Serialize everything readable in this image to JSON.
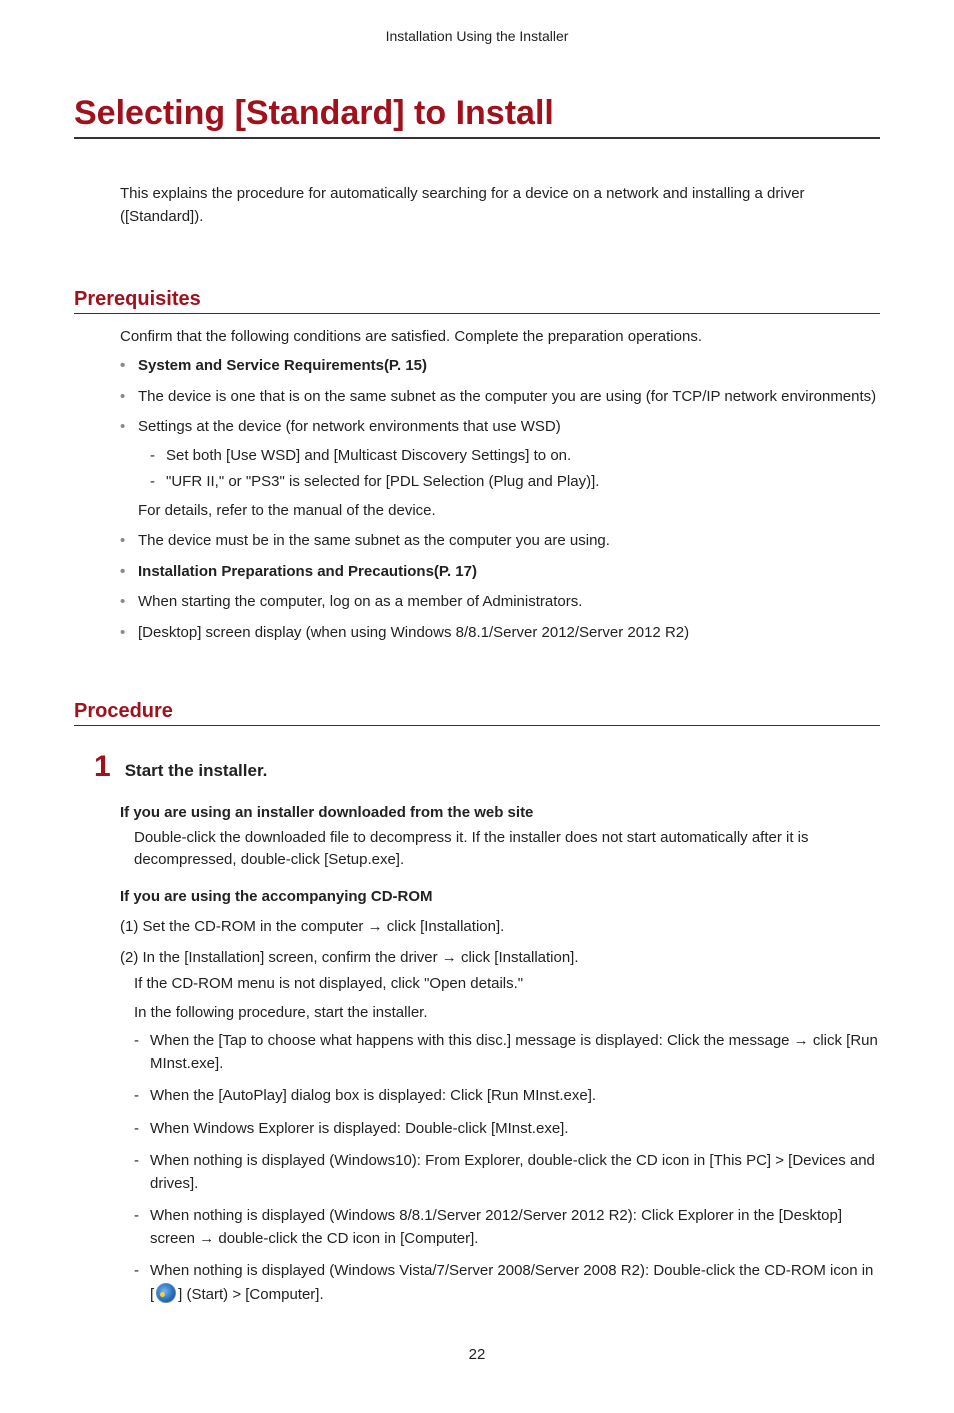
{
  "header": "Installation Using the Installer",
  "title": "Selecting [Standard] to Install",
  "intro": "This explains the procedure for automatically searching for a device on a network and installing a driver ([Standard]).",
  "prerequisites": {
    "heading": "Prerequisites",
    "intro": "Confirm that the following conditions are satisfied. Complete the preparation operations.",
    "items": {
      "i1": "System and Service Requirements(P. 15)",
      "i2": "The device is one that is on the same subnet as the computer you are using (for TCP/IP network environments)",
      "i3": {
        "text": "Settings at the device (for network environments that use WSD)",
        "sub1": "Set both [Use WSD] and [Multicast Discovery Settings] to on.",
        "sub2": "\"UFR II,\" or \"PS3\" is selected for [PDL Selection (Plug and Play)].",
        "after": "For details, refer to the manual of the device."
      },
      "i4": "The device must be in the same subnet as the computer you are using.",
      "i5": "Installation Preparations and Precautions(P. 17)",
      "i6": "When starting the computer, log on as a member of Administrators.",
      "i7": "[Desktop] screen display (when using Windows 8/8.1/Server 2012/Server 2012 R2)"
    }
  },
  "procedure": {
    "heading": "Procedure",
    "step1": {
      "num": "1",
      "title": "Start the installer.",
      "web_head": "If you are using an installer downloaded from the web site",
      "web_text": "Double-click the downloaded file to decompress it. If the installer does not start automatically after it is decompressed, double-click [Setup.exe].",
      "cd_head": "If you are using the accompanying CD-ROM",
      "cd_1": "(1) Set the CD-ROM in the computer → click [Installation].",
      "cd_2": "(2) In the [Installation] screen, confirm the driver → click [Installation].",
      "cd_2a": "If the CD-ROM menu is not displayed, click \"Open details.\"",
      "cd_2b": "In the following procedure, start the installer.",
      "dash": {
        "d1": "When the [Tap to choose what happens with this disc.] message is displayed: Click the message → click [Run MInst.exe].",
        "d2": "When the [AutoPlay] dialog box is displayed: Click [Run MInst.exe].",
        "d3": "When Windows Explorer is displayed: Double-click [MInst.exe].",
        "d4": "When nothing is displayed (Windows10): From Explorer, double-click the CD icon in [This PC] > [Devices and drives].",
        "d5": "When nothing is displayed (Windows 8/8.1/Server 2012/Server 2012 R2): Click Explorer in the [Desktop] screen → double-click the CD icon in [Computer].",
        "d6_before": "When nothing is displayed (Windows Vista/7/Server 2008/Server 2008 R2): Double-click the CD-ROM icon in [",
        "d6_after": "] (Start) > [Computer]."
      }
    }
  },
  "page_number": "22"
}
